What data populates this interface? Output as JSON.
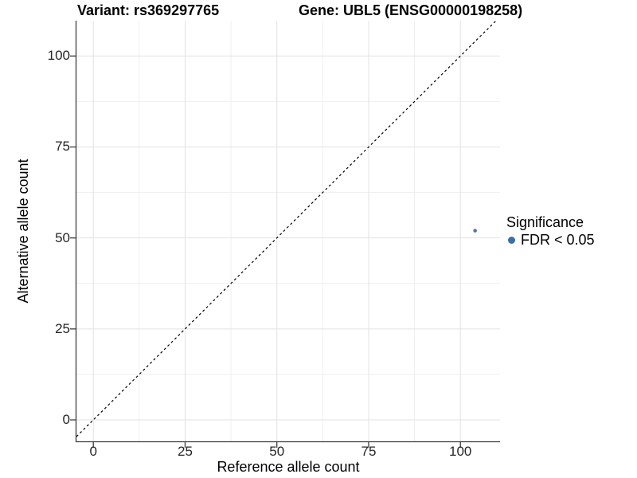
{
  "header": {
    "variant_title": "Variant: rs369297765",
    "gene_title": "Gene: UBL5 (ENSG00000198258)"
  },
  "chart_data": {
    "type": "scatter",
    "xlabel": "Reference allele count",
    "ylabel": "Alternative allele count",
    "x_ticks": [
      0,
      25,
      50,
      75,
      100
    ],
    "y_ticks": [
      0,
      25,
      50,
      75,
      100
    ],
    "xlim": [
      -4.6,
      110.8
    ],
    "ylim": [
      -5.9,
      109.7
    ],
    "grid": "major+minor",
    "minor_step": 12.5,
    "points": [
      {
        "x": 104,
        "y": 52,
        "series": "FDR < 0.05"
      }
    ],
    "reference_line": {
      "type": "identity y=x",
      "style": "dashed",
      "color": "#000000"
    },
    "legend": {
      "position": "right",
      "title": "Significance",
      "entries": [
        {
          "label": "FDR < 0.05",
          "color": "#3d6fa6"
        }
      ]
    },
    "colors": {
      "point": "#4878a8",
      "grid_major": "#e2e2e2",
      "grid_minor": "#efefef",
      "axis_line": "#3c3c3c",
      "tick_text": "#262626"
    }
  }
}
